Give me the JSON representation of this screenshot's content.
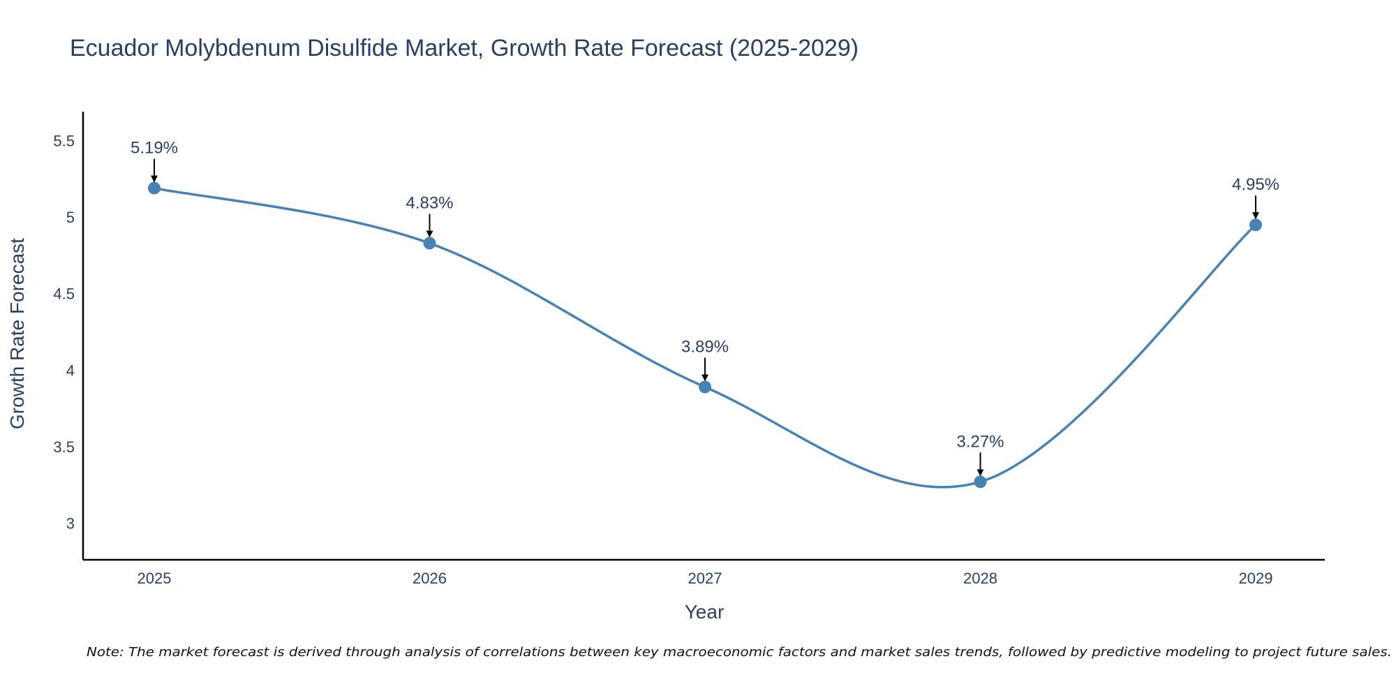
{
  "chart_data": {
    "type": "line",
    "title": "Ecuador Molybdenum Disulfide Market, Growth Rate Forecast (2025-2029)",
    "xlabel": "Year",
    "ylabel": "Growth Rate Forecast",
    "categories": [
      "2025",
      "2026",
      "2027",
      "2028",
      "2029"
    ],
    "series": [
      {
        "name": "Growth Rate Forecast",
        "values": [
          5.19,
          4.83,
          3.89,
          3.27,
          4.95
        ],
        "labels": [
          "5.19%",
          "4.83%",
          "3.89%",
          "3.27%",
          "4.95%"
        ]
      }
    ],
    "ylim": [
      2.76,
      5.69
    ],
    "yticks": [
      3,
      3.5,
      4,
      4.5,
      5,
      5.5
    ],
    "ytick_labels": [
      "3",
      "3.5",
      "4",
      "4.5",
      "5",
      "5.5"
    ],
    "grid": false,
    "line_shape": "spline",
    "colors": {
      "line": "#4682b4",
      "marker": "#4682b4",
      "arrow": "#000000",
      "text": "#2a3f5f",
      "axis": "#000000"
    }
  },
  "note": "Note: The market forecast is derived through analysis of correlations between key macroeconomic factors and market sales trends, followed by predictive modeling to project future sales."
}
